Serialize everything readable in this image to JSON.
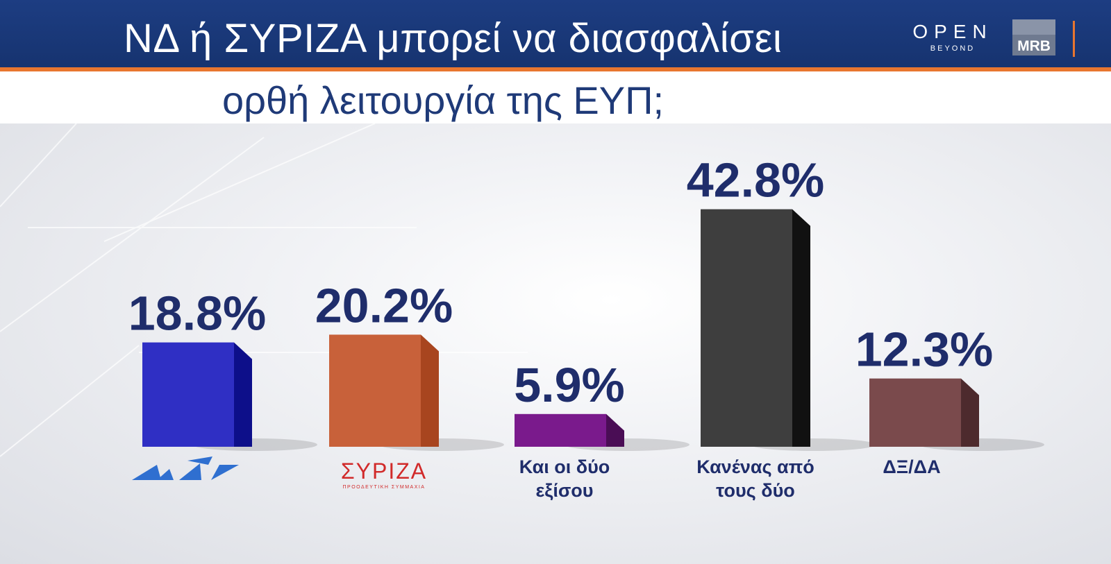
{
  "header": {
    "title_line1": "ΝΔ ή ΣΥΡΙΖΑ μπορεί να διασφαλίσει",
    "title_line2": "ορθή λειτουργία της ΕΥΠ;",
    "logo_open_word": "OPEN",
    "logo_open_sub": "BEYOND",
    "logo_mrb": "MRB"
  },
  "colors": {
    "header_bg": "#1d3d82",
    "accent": "#e8762f",
    "value_text": "#1f2d6b"
  },
  "chart_data": {
    "type": "bar",
    "title": "ΝΔ ή ΣΥΡΙΖΑ μπορεί να διασφαλίσει ορθή λειτουργία της ΕΥΠ;",
    "categories": [
      "ΝΔ",
      "ΣΥΡΙΖΑ",
      "Και οι δύο εξίσου",
      "Κανένας από τους δύο",
      "ΔΞ/ΔΑ"
    ],
    "values": [
      18.8,
      20.2,
      5.9,
      42.8,
      12.3
    ],
    "value_labels": [
      "18.8%",
      "20.2%",
      "5.9%",
      "42.8%",
      "12.3%"
    ],
    "label_lines": [
      [],
      [],
      [
        "Και οι δύο",
        "εξίσου"
      ],
      [
        "Κανένας από",
        "τους δύο"
      ],
      [
        "ΔΞ/ΔΑ"
      ]
    ],
    "logo_labels": {
      "nd": "ΝΔ",
      "syriza": "ΣΥΡΙΖΑ",
      "syriza_sub": "ΠΡΟΟΔΕΥΤΙΚΗ ΣΥΜΜΑΧΙΑ"
    },
    "colors": [
      "#2f2fc4",
      "#c8613a",
      "#7a1a8c",
      "#3e3e3e",
      "#7a4a4c"
    ],
    "side_colors": [
      "#0d0f8a",
      "#a8451f",
      "#4a0d55",
      "#111111",
      "#4d2a2d"
    ],
    "ylim": [
      0,
      50
    ],
    "xlabel": "",
    "ylabel": "",
    "grid": false
  }
}
